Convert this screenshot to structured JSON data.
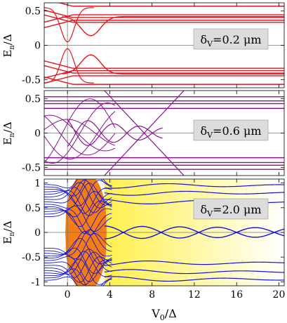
{
  "chart_data": [
    {
      "type": "line",
      "id": "top",
      "annotation": "δV=0.2 μm",
      "annotation_prefix": "δ",
      "annotation_sub": "V",
      "annotation_rest": "=0.2 μm",
      "ylabel_main": "E",
      "ylabel_sub": "n",
      "ylabel_tail": "/Δ",
      "xlim": [
        -2.2,
        20.5
      ],
      "ylim": [
        -0.62,
        0.62
      ],
      "yticks": [
        {
          "v": 0.5,
          "label": "0.5"
        },
        {
          "v": 0,
          "label": "0"
        },
        {
          "v": -0.5,
          "label": "-0.5"
        }
      ],
      "xticks": [
        0,
        4,
        8,
        12,
        16,
        20
      ],
      "show_xtick_labels": false,
      "line_color": "#e8121b",
      "flat_levels": [
        0.57,
        0.445,
        0.405,
        0.365,
        0.335,
        -0.335,
        -0.37,
        -0.405,
        -0.445,
        -0.57
      ],
      "gap_curve": {
        "center": 2.2,
        "min": 0.14,
        "asymptote": 0.42
      }
    },
    {
      "type": "line",
      "id": "middle",
      "annotation": "δV=0.6 μm",
      "annotation_prefix": "δ",
      "annotation_sub": "V",
      "annotation_rest": "=0.6 μm",
      "ylabel_main": "E",
      "ylabel_sub": "n",
      "ylabel_tail": "/Δ",
      "xlim": [
        -2.2,
        20.5
      ],
      "ylim": [
        -0.62,
        0.62
      ],
      "yticks": [
        {
          "v": 0.5,
          "label": "0.5"
        },
        {
          "v": 0,
          "label": "0"
        },
        {
          "v": -0.5,
          "label": "-0.5"
        }
      ],
      "xticks": [
        0,
        4,
        8,
        12,
        16,
        20
      ],
      "show_xtick_labels": false,
      "line_color": "#8b128f",
      "flat_levels": [
        0.53,
        0.47,
        0.43,
        0.36,
        -0.36,
        -0.43,
        -0.47,
        -0.53
      ]
    },
    {
      "type": "line",
      "id": "bottom",
      "annotation": "δV=2.0 μm",
      "annotation_prefix": "δ",
      "annotation_sub": "V",
      "annotation_rest": "=2.0 μm",
      "ylabel_main": "E",
      "ylabel_sub": "n",
      "ylabel_tail": "/Δ",
      "xlabel_main": "V",
      "xlabel_sub": "0",
      "xlabel_tail": "/Δ",
      "xlim": [
        -2.2,
        20.5
      ],
      "ylim": [
        -1.08,
        1.08
      ],
      "yticks": [
        {
          "v": 1,
          "label": "1"
        },
        {
          "v": 0.5,
          "label": "0.5"
        },
        {
          "v": 0,
          "label": "0"
        },
        {
          "v": -0.5,
          "label": "-0.5"
        },
        {
          "v": -1,
          "label": "-1"
        }
      ],
      "xticks": [
        0,
        4,
        8,
        12,
        16,
        20
      ],
      "xtick_labels": [
        "0",
        "4",
        "8",
        "12",
        "16",
        "20"
      ],
      "show_xtick_labels": true,
      "line_color": "#1414d8",
      "shaded_region": {
        "x": [
          -0.2,
          3.7
        ],
        "color": "#f47d14"
      },
      "gradient": {
        "from_x": 3.5,
        "to_x": 20.5,
        "start_color": "#fff04a",
        "end_color": "#ffffff"
      }
    }
  ]
}
